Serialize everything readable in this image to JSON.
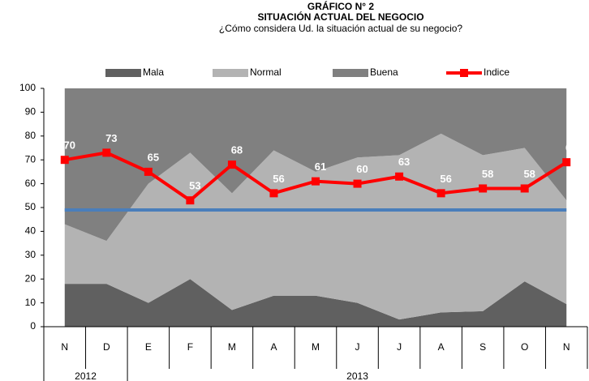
{
  "chart_data": {
    "type": "stacked_area_line",
    "title": "GRÁFICO N° 2",
    "subtitle": "SITUACIÓN ACTUAL DEL NEGOCIO",
    "question": "¿Cómo considera Ud. la situación actual de su negocio?",
    "categories": [
      "N",
      "D",
      "E",
      "F",
      "M",
      "A",
      "M",
      "J",
      "J",
      "A",
      "S",
      "O",
      "N"
    ],
    "x_groups": [
      {
        "label": "2012",
        "count": 2
      },
      {
        "label": "2013",
        "count": 11
      }
    ],
    "series": [
      {
        "name": "Mala",
        "color": "#606060",
        "kind": "area",
        "values": [
          18,
          18,
          10,
          20,
          7,
          13,
          13,
          10,
          3,
          6,
          6.5,
          19,
          9.5
        ]
      },
      {
        "name": "Normal",
        "color": "#b3b3b3",
        "kind": "area",
        "values": [
          25,
          18,
          50,
          53,
          49,
          61,
          52,
          61,
          69,
          75,
          65.5,
          56,
          43.5
        ]
      },
      {
        "name": "Buena",
        "color": "#808080",
        "kind": "area",
        "values": [
          57,
          64,
          40,
          27,
          44,
          26,
          35,
          29,
          28,
          19,
          28,
          25,
          47
        ]
      },
      {
        "name": "Indice",
        "color": "#ff0000",
        "kind": "line",
        "values": [
          70,
          73,
          65,
          53,
          68,
          56,
          61,
          60,
          63,
          56,
          58,
          58,
          69
        ]
      }
    ],
    "hline": {
      "value": 49,
      "color": "#4a7ebb"
    },
    "ylim": [
      0,
      100
    ],
    "yticks": [
      0,
      10,
      20,
      30,
      40,
      50,
      60,
      70,
      80,
      90,
      100
    ]
  }
}
